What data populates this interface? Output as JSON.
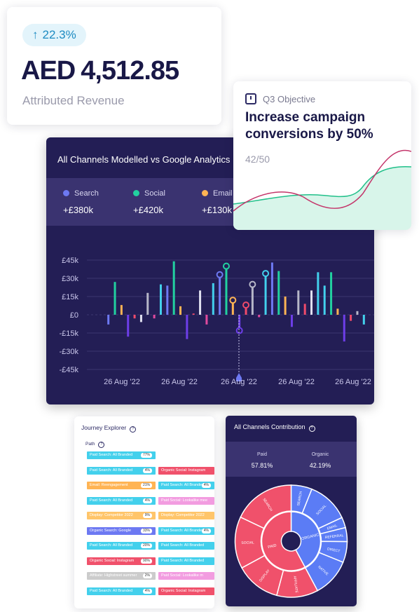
{
  "revenue": {
    "change": "22.3%",
    "currency": "AED",
    "amount": "4,512.85",
    "label": "Attributed Revenue"
  },
  "objective": {
    "period": "Q3 Objective",
    "headline": "Increase campaign conversions by 50%",
    "progress_text": "42/50",
    "progress_value": 42,
    "progress_target": 50
  },
  "chart_card": {
    "title": "All Channels Modelled vs Google Analytics",
    "legend": [
      {
        "name": "Search",
        "value": "+£380k",
        "color": "#6d79f2"
      },
      {
        "name": "Social",
        "value": "+£420k",
        "color": "#22d1a0"
      },
      {
        "name": "Email",
        "value": "+£130k",
        "color": "#ffb454"
      }
    ]
  },
  "chart_data": {
    "type": "bar",
    "yticks": [
      "£45k",
      "£30k",
      "£15k",
      "£0",
      "-£15k",
      "-£30k",
      "-£45k"
    ],
    "ylim": [
      -45,
      45
    ],
    "xticks": [
      "26 Aug '22",
      "26 Aug '22",
      "26 Aug '22",
      "26 Aug '22",
      "26 Aug '22"
    ],
    "bars": [
      {
        "v": -8,
        "c": "#6d79f2"
      },
      {
        "v": 27,
        "c": "#22d1a0"
      },
      {
        "v": 8,
        "c": "#ffb454"
      },
      {
        "v": -18,
        "c": "#6d3ee8"
      },
      {
        "v": -3,
        "c": "#f04b6b"
      },
      {
        "v": -6,
        "c": "#e0e0f0"
      },
      {
        "v": 18,
        "c": "#b7b7c8"
      },
      {
        "v": -3,
        "c": "#e04a9e"
      },
      {
        "v": 25,
        "c": "#43d0ec"
      },
      {
        "v": 24,
        "c": "#6d79f2"
      },
      {
        "v": 44,
        "c": "#22d1a0"
      },
      {
        "v": 7,
        "c": "#ffb454"
      },
      {
        "v": -20,
        "c": "#6d3ee8"
      },
      {
        "v": 1,
        "c": "#f04b6b"
      },
      {
        "v": 20,
        "c": "#e0e0f0"
      },
      {
        "v": -8,
        "c": "#e04a9e"
      },
      {
        "v": 26,
        "c": "#43d0ec"
      },
      {
        "v": 33,
        "c": "#6d79f2"
      },
      {
        "v": 40,
        "c": "#22d1a0"
      },
      {
        "v": 12,
        "c": "#ffb454"
      },
      {
        "v": -13,
        "c": "#6d3ee8"
      },
      {
        "v": 8,
        "c": "#f04b6b"
      },
      {
        "v": 25,
        "c": "#b7b7c8"
      },
      {
        "v": -2,
        "c": "#e04a9e"
      },
      {
        "v": 34,
        "c": "#43d0ec"
      },
      {
        "v": 43,
        "c": "#6d79f2"
      },
      {
        "v": 36,
        "c": "#22d1a0"
      },
      {
        "v": 15,
        "c": "#ffb454"
      },
      {
        "v": -10,
        "c": "#6d3ee8"
      },
      {
        "v": 20,
        "c": "#b7b7c8"
      },
      {
        "v": 9,
        "c": "#f04b6b"
      },
      {
        "v": 20,
        "c": "#e0e0f0"
      },
      {
        "v": 35,
        "c": "#43d0ec"
      },
      {
        "v": 24,
        "c": "#43d0ec"
      },
      {
        "v": 35,
        "c": "#22d1a0"
      },
      {
        "v": 5,
        "c": "#ffb454"
      },
      {
        "v": -22,
        "c": "#6d3ee8"
      },
      {
        "v": -5,
        "c": "#f04b6b"
      },
      {
        "v": 3,
        "c": "#b7b7c8"
      },
      {
        "v": -8,
        "c": "#43d0ec"
      }
    ],
    "highlighted": [
      17,
      18,
      19,
      20,
      21,
      22,
      24
    ]
  },
  "journey": {
    "title": "Journey Explorer",
    "path_label": "Path",
    "rows": [
      [
        {
          "label": "Paid Search: All Branded",
          "pct": "77%",
          "color": "#43d0ec"
        }
      ],
      [
        {
          "label": "Paid Search: All Branded",
          "pct": "4%",
          "color": "#43d0ec"
        },
        {
          "label": "Organic Social: Instagram",
          "pct": "",
          "color": "#f0516b"
        }
      ],
      [
        {
          "label": "Email: Reengagement",
          "pct": "21%",
          "color": "#ffb454"
        },
        {
          "label": "Paid Search: All Branded",
          "pct": "4%",
          "color": "#43d0ec"
        }
      ],
      [
        {
          "label": "Paid Search: All Branded",
          "pct": "4%",
          "color": "#43d0ec"
        },
        {
          "label": "Paid Social: Lookalike mee",
          "pct": "",
          "color": "#f29ce0"
        }
      ],
      [
        {
          "label": "Display: Competitor 2022",
          "pct": "9%",
          "color": "#ffc56a"
        },
        {
          "label": "Display: Competitor 2022",
          "pct": "",
          "color": "#ffc56a"
        }
      ],
      [
        {
          "label": "Organic Search: Google",
          "pct": "33%",
          "color": "#6d79f2"
        },
        {
          "label": "Paid Search: All Branded",
          "pct": "4%",
          "color": "#43d0ec"
        }
      ],
      [
        {
          "label": "Paid Search: All Branded",
          "pct": "20%",
          "color": "#43d0ec"
        },
        {
          "label": "Paid Search: All Branded",
          "pct": "",
          "color": "#43d0ec"
        }
      ],
      [
        {
          "label": "Organic Social: Instagram",
          "pct": "90%",
          "color": "#f0516b"
        },
        {
          "label": "Paid Search: All Branded",
          "pct": "",
          "color": "#43d0ec"
        }
      ],
      [
        {
          "label": "Affiliate: Highstreet summer",
          "pct": "2%",
          "color": "#cccccc"
        },
        {
          "label": "Paid Social: Lookalike m",
          "pct": "",
          "color": "#f29ce0"
        }
      ],
      [
        {
          "label": "Paid Search: All Branded",
          "pct": "4%",
          "color": "#43d0ec"
        },
        {
          "label": "Organic Social: Instagram",
          "pct": "",
          "color": "#f0516b"
        }
      ]
    ]
  },
  "contribution": {
    "title": "All Channels Contribution",
    "stats": [
      {
        "label": "Paid",
        "value": "57.81%"
      },
      {
        "label": "Organic",
        "value": "42.19%"
      }
    ],
    "inner": [
      {
        "label": "PAID",
        "value": 57.81,
        "color": "#f0516b"
      },
      {
        "label": "ORGANIC",
        "value": 42.19,
        "color": "#5b7cf5"
      }
    ],
    "outer": [
      {
        "label": "SEARCH",
        "value": 18,
        "color": "#f0516b"
      },
      {
        "label": "SOCIAL",
        "value": 15,
        "color": "#f0516b"
      },
      {
        "label": "DISPLAY",
        "value": 13,
        "color": "#f0516b"
      },
      {
        "label": "AFFILIATE",
        "value": 12,
        "color": "#f0516b"
      },
      {
        "label": "NATIVE",
        "value": 11,
        "color": "#5b7cf5"
      },
      {
        "label": "DIRECT",
        "value": 6,
        "color": "#5b7cf5"
      },
      {
        "label": "REFERRAL",
        "value": 4,
        "color": "#5b7cf5"
      },
      {
        "label": "EMAIL",
        "value": 3,
        "color": "#5b7cf5"
      },
      {
        "label": "SOCIAL",
        "value": 12,
        "color": "#5b7cf5"
      },
      {
        "label": "SEARCH",
        "value": 6,
        "color": "#5b7cf5"
      }
    ]
  }
}
